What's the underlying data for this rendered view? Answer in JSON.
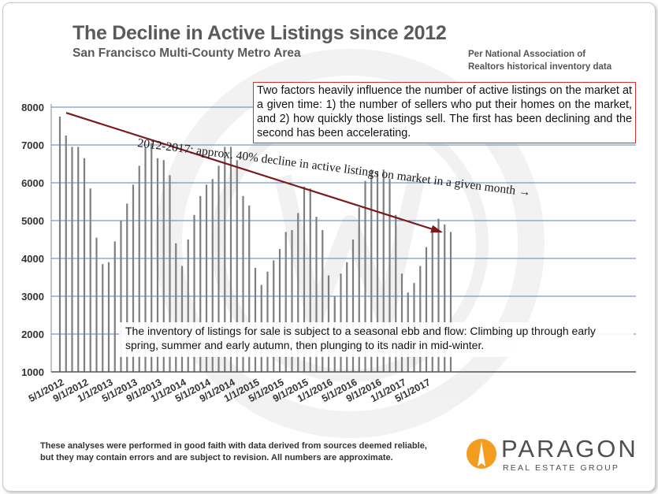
{
  "header": {
    "title": "The Decline in Active Listings since 2012",
    "subtitle": "San Francisco Multi-County Metro Area",
    "source_line1": "Per National Association of",
    "source_line2": "Realtors historical inventory data"
  },
  "annotations": {
    "top_box": "Two factors heavily influence the number of active listings on the market at a given time: 1) the number of sellers who put their homes on the market, and 2) how quickly those listings sell. The first has been declining and the second has been accelerating.",
    "trend_label": "2012-2017: approx. 40% decline in active listings on market in a given month →",
    "seasonal_box": "The inventory of listings for sale is subject to a seasonal ebb and flow: Climbing up through early spring, summer and early autumn, then plunging to its nadir in mid-winter."
  },
  "footer": {
    "disclaimer_line1": "These analyses were performed in good faith with data derived from sources deemed reliable,",
    "disclaimer_line2": "but they may contain errors and are subject to revision. All numbers are approximate.",
    "logo_name": "PARAGON",
    "logo_sub": "REAL ESTATE GROUP"
  },
  "colors": {
    "bar": "#7f7f7f",
    "grid": "#5b7fbf",
    "trend_arrow": "#7a1c1c",
    "box_border": "#d62f2f",
    "logo_orange": "#f39c1e"
  },
  "chart_data": {
    "type": "bar",
    "title": "The Decline in Active Listings since 2012",
    "ylim": [
      1000,
      8000
    ],
    "yticks": [
      1000,
      2000,
      3000,
      4000,
      5000,
      6000,
      7000,
      8000
    ],
    "grid": true,
    "categories": [
      "5/1/2012",
      "6/1/2012",
      "7/1/2012",
      "8/1/2012",
      "9/1/2012",
      "10/1/2012",
      "11/1/2012",
      "12/1/2012",
      "1/1/2013",
      "2/1/2013",
      "3/1/2013",
      "4/1/2013",
      "5/1/2013",
      "6/1/2013",
      "7/1/2013",
      "8/1/2013",
      "9/1/2013",
      "10/1/2013",
      "11/1/2013",
      "12/1/2013",
      "1/1/2014",
      "2/1/2014",
      "3/1/2014",
      "4/1/2014",
      "5/1/2014",
      "6/1/2014",
      "7/1/2014",
      "8/1/2014",
      "9/1/2014",
      "10/1/2014",
      "11/1/2014",
      "12/1/2014",
      "1/1/2015",
      "2/1/2015",
      "3/1/2015",
      "4/1/2015",
      "5/1/2015",
      "6/1/2015",
      "7/1/2015",
      "8/1/2015",
      "9/1/2015",
      "10/1/2015",
      "11/1/2015",
      "12/1/2015",
      "1/1/2016",
      "2/1/2016",
      "3/1/2016",
      "4/1/2016",
      "5/1/2016",
      "6/1/2016",
      "7/1/2016",
      "8/1/2016",
      "9/1/2016",
      "10/1/2016",
      "11/1/2016",
      "12/1/2016",
      "1/1/2017",
      "2/1/2017",
      "3/1/2017",
      "4/1/2017",
      "5/1/2017",
      "6/1/2017",
      "7/1/2017",
      "8/1/2017",
      "9/1/2017"
    ],
    "values": [
      7750,
      7250,
      6950,
      6950,
      6650,
      5850,
      4550,
      3850,
      3900,
      4450,
      5000,
      5450,
      5950,
      6450,
      6950,
      7050,
      6650,
      6600,
      6200,
      4400,
      3800,
      4500,
      5150,
      5650,
      5950,
      6100,
      6450,
      6950,
      6950,
      6600,
      5650,
      5400,
      3750,
      3300,
      3650,
      3950,
      4250,
      4700,
      4750,
      5200,
      5900,
      5850,
      5100,
      4750,
      3550,
      3000,
      3600,
      3900,
      4500,
      5350,
      6050,
      6350,
      6300,
      6350,
      6100,
      5150,
      3600,
      3100,
      3350,
      3800,
      4300,
      4750,
      5050,
      4900,
      4700
    ],
    "xtick_labels": [
      "5/1/2012",
      "9/1/2012",
      "1/1/2013",
      "5/1/2013",
      "9/1/2013",
      "1/1/2014",
      "5/1/2014",
      "9/1/2014",
      "1/1/2015",
      "5/1/2015",
      "9/1/2015",
      "1/1/2016",
      "5/1/2016",
      "9/1/2016",
      "1/1/2017",
      "5/1/2017"
    ],
    "trend_line": {
      "from": [
        "5/1/2012",
        7850
      ],
      "to": [
        "9/1/2017",
        4700
      ]
    }
  }
}
